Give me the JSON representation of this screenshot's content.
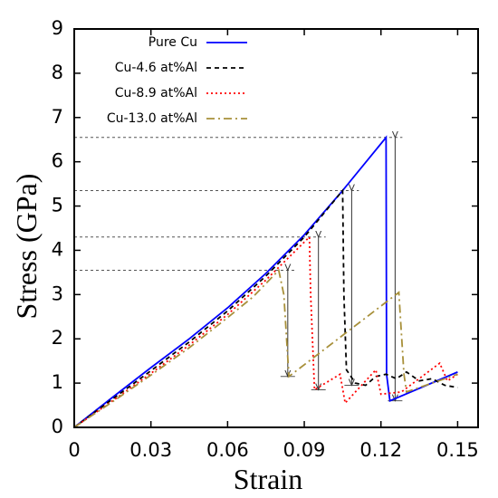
{
  "chart_data": {
    "type": "line",
    "x_label": "Strain",
    "y_label": "Stress (GPa)",
    "xlim": [
      0,
      0.158
    ],
    "ylim": [
      0,
      9
    ],
    "xticks": [
      0,
      0.03,
      0.06,
      0.09,
      0.12,
      0.15
    ],
    "yticks": [
      0,
      1,
      2,
      3,
      4,
      5,
      6,
      7,
      8,
      9
    ],
    "legend": "upper left",
    "series": [
      {
        "name": "Pure Cu",
        "color": "#0000ff",
        "dash": "solid",
        "x": [
          0,
          0.015,
          0.03,
          0.045,
          0.06,
          0.075,
          0.09,
          0.105,
          0.122,
          0.1222,
          0.1235,
          0.15
        ],
        "values": [
          0,
          0.68,
          1.35,
          2.0,
          2.7,
          3.48,
          4.35,
          5.35,
          6.55,
          1.2,
          0.6,
          1.25
        ]
      },
      {
        "name": "Cu-4.6 at%Al",
        "color": "#000000",
        "dash": "dashed",
        "x": [
          0,
          0.015,
          0.03,
          0.045,
          0.06,
          0.075,
          0.09,
          0.105,
          0.1055,
          0.1065,
          0.11,
          0.114,
          0.118,
          0.122,
          0.126,
          0.13,
          0.135,
          0.14,
          0.145,
          0.15
        ],
        "values": [
          0,
          0.64,
          1.28,
          1.93,
          2.63,
          3.42,
          4.3,
          5.35,
          3.0,
          1.3,
          1.0,
          0.95,
          1.15,
          1.2,
          1.1,
          1.25,
          1.05,
          1.1,
          0.95,
          0.9
        ]
      },
      {
        "name": "Cu-8.9 at%Al",
        "color": "#ff0000",
        "dash": "dotted",
        "x": [
          0,
          0.015,
          0.03,
          0.045,
          0.06,
          0.075,
          0.092,
          0.0925,
          0.094,
          0.104,
          0.106,
          0.118,
          0.12,
          0.128,
          0.143,
          0.146,
          0.15
        ],
        "values": [
          0,
          0.6,
          1.22,
          1.86,
          2.55,
          3.33,
          4.3,
          3.0,
          0.85,
          1.2,
          0.55,
          1.3,
          0.75,
          0.8,
          1.45,
          1.05,
          1.2
        ]
      },
      {
        "name": "Cu-13.0 at%Al",
        "color": "#a8903a",
        "dash": "dashdot",
        "x": [
          0,
          0.015,
          0.03,
          0.045,
          0.06,
          0.07,
          0.08,
          0.082,
          0.084,
          0.127,
          0.129,
          0.13,
          0.15
        ],
        "values": [
          0,
          0.58,
          1.18,
          1.8,
          2.48,
          2.95,
          3.55,
          3.0,
          1.15,
          3.05,
          1.2,
          0.8,
          1.2
        ]
      }
    ]
  }
}
